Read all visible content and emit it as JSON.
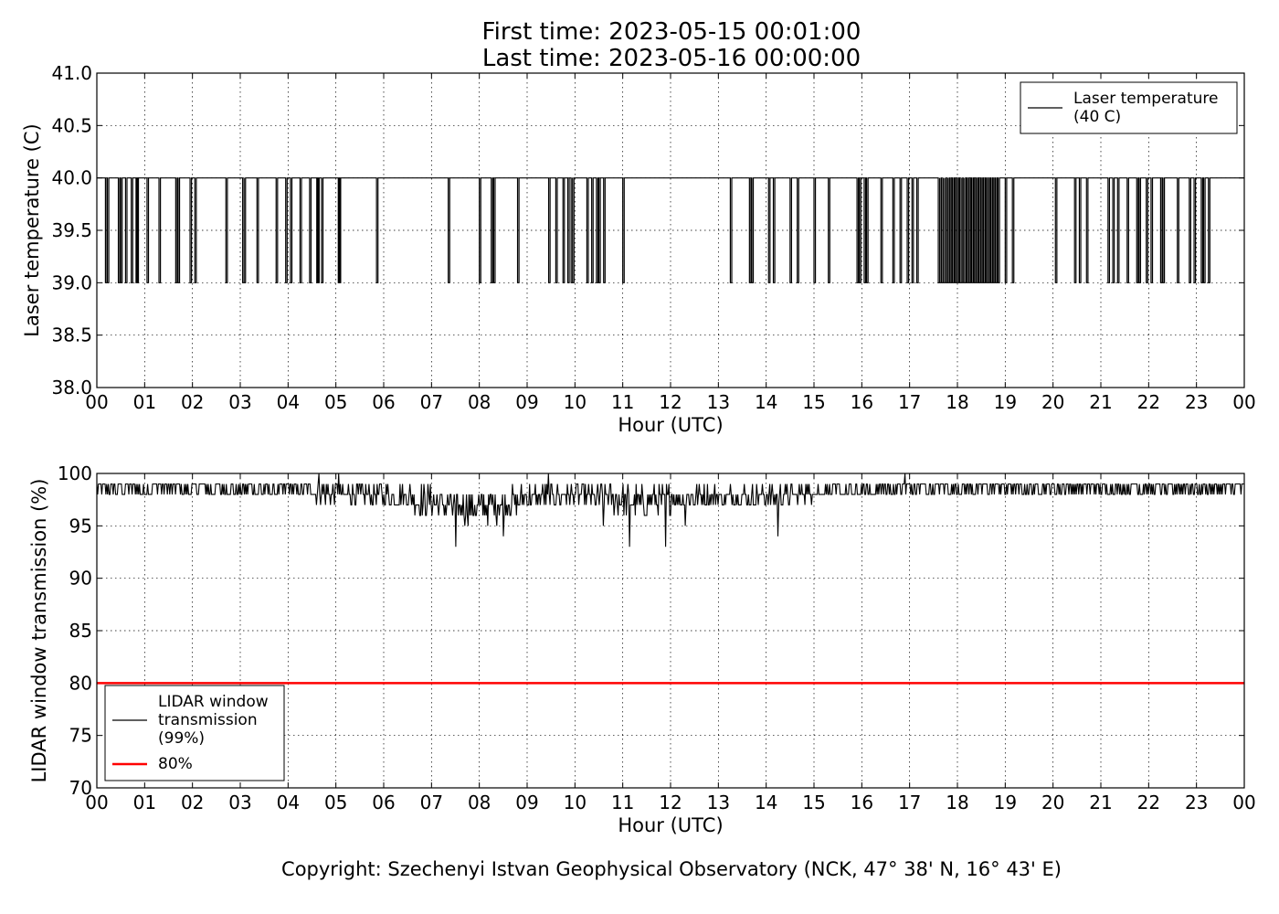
{
  "figure": {
    "title_line1": "First time: 2023-05-15 00:01:00",
    "title_line2": "Last time: 2023-05-16 00:00:00",
    "copyright": "Copyright: Szechenyi Istvan Geophysical Observatory (NCK, 47° 38' N, 16° 43' E)"
  },
  "chart_data": [
    {
      "type": "line",
      "xlabel": "Hour (UTC)",
      "ylabel": "Laser temperature (C)",
      "xlim": [
        0,
        24
      ],
      "ylim": [
        38.0,
        41.0
      ],
      "x_ticks": [
        "00",
        "01",
        "02",
        "03",
        "04",
        "05",
        "06",
        "07",
        "08",
        "09",
        "10",
        "11",
        "12",
        "13",
        "14",
        "15",
        "16",
        "17",
        "18",
        "19",
        "20",
        "21",
        "22",
        "23",
        "00"
      ],
      "y_ticks": [
        "38.0",
        "38.5",
        "39.0",
        "39.5",
        "40.0",
        "40.5",
        "41.0"
      ],
      "grid": true,
      "legend_position": "top-right",
      "series": [
        {
          "name": "Laser temperature\n(40 C)",
          "legend_lines": [
            "Laser temperature",
            "(40 C)"
          ],
          "color": "#000000",
          "baseline": 40.0,
          "dip_value": 39.0,
          "dips_hours": [
            0.18,
            0.22,
            0.45,
            0.5,
            0.6,
            0.72,
            0.82,
            0.84,
            1.05,
            1.3,
            1.65,
            1.7,
            1.95,
            2.05,
            2.7,
            3.05,
            3.08,
            3.35,
            3.75,
            3.95,
            4.05,
            4.25,
            4.45,
            4.6,
            4.62,
            4.7,
            5.05,
            5.07,
            5.85,
            7.35,
            8.0,
            8.25,
            8.3,
            8.8,
            9.45,
            9.6,
            9.75,
            9.85,
            9.92,
            9.95,
            10.25,
            10.35,
            10.45,
            10.5,
            10.6,
            11.0,
            13.25,
            13.65,
            13.7,
            14.05,
            14.15,
            14.5,
            14.65,
            15.0,
            15.3,
            15.9,
            15.95,
            16.05,
            16.1,
            16.4,
            16.65,
            16.8,
            16.95,
            17.05,
            17.15,
            17.6,
            17.63,
            17.67,
            17.7,
            17.73,
            17.77,
            17.8,
            17.85,
            17.9,
            17.95,
            18.0,
            18.05,
            18.08,
            18.12,
            18.15,
            18.2,
            18.25,
            18.3,
            18.35,
            18.4,
            18.45,
            18.5,
            18.55,
            18.6,
            18.65,
            18.7,
            18.75,
            18.8,
            18.85,
            19.0,
            19.15,
            20.05,
            20.45,
            20.55,
            20.7,
            21.15,
            21.25,
            21.35,
            21.55,
            21.75,
            21.8,
            21.95,
            22.05,
            22.25,
            22.3,
            22.6,
            22.85,
            22.95,
            23.1,
            23.15,
            23.25
          ]
        }
      ]
    },
    {
      "type": "line",
      "xlabel": "Hour (UTC)",
      "ylabel": "LIDAR window transmission (%)",
      "xlim": [
        0,
        24
      ],
      "ylim": [
        70,
        100
      ],
      "x_ticks": [
        "00",
        "01",
        "02",
        "03",
        "04",
        "05",
        "06",
        "07",
        "08",
        "09",
        "10",
        "11",
        "12",
        "13",
        "14",
        "15",
        "16",
        "17",
        "18",
        "19",
        "20",
        "21",
        "22",
        "23",
        "00"
      ],
      "y_ticks": [
        "70",
        "75",
        "80",
        "85",
        "90",
        "95",
        "100"
      ],
      "grid": true,
      "legend_position": "bottom-left",
      "series": [
        {
          "name": "LIDAR window\ntransmission\n(99%)",
          "legend_lines": [
            "LIDAR window",
            "transmission",
            "(99%)"
          ],
          "color": "#000000",
          "profile": [
            [
              0,
              98.6,
              0.5
            ],
            [
              3.5,
              98.5,
              0.6
            ],
            [
              4.6,
              98.3,
              1.0
            ],
            [
              5.5,
              98.0,
              1.0
            ],
            [
              6.5,
              97.8,
              1.2
            ],
            [
              7.0,
              97.2,
              1.5
            ],
            [
              7.5,
              96.8,
              1.6
            ],
            [
              8.0,
              96.8,
              1.6
            ],
            [
              8.5,
              97.0,
              1.5
            ],
            [
              9.0,
              97.8,
              1.0
            ],
            [
              10.0,
              98.0,
              1.0
            ],
            [
              11.0,
              97.5,
              1.4
            ],
            [
              11.5,
              97.2,
              1.5
            ],
            [
              12.0,
              97.6,
              1.2
            ],
            [
              13.0,
              97.8,
              1.0
            ],
            [
              14.0,
              97.8,
              1.0
            ],
            [
              15.0,
              98.2,
              0.7
            ],
            [
              16.0,
              98.3,
              0.7
            ],
            [
              17.0,
              98.6,
              0.5
            ],
            [
              24,
              98.6,
              0.5
            ]
          ],
          "spikes": [
            [
              7.5,
              93
            ],
            [
              8.5,
              94
            ],
            [
              11.15,
              93
            ],
            [
              11.9,
              93
            ],
            [
              14.25,
              94
            ],
            [
              10.6,
              95
            ],
            [
              12.3,
              95
            ],
            [
              4.65,
              100
            ],
            [
              5.05,
              100
            ],
            [
              9.45,
              100
            ],
            [
              16.9,
              100
            ]
          ]
        },
        {
          "name": "80%",
          "legend_lines": [
            "80%"
          ],
          "color": "#ff0000",
          "constant": 80
        }
      ]
    }
  ]
}
